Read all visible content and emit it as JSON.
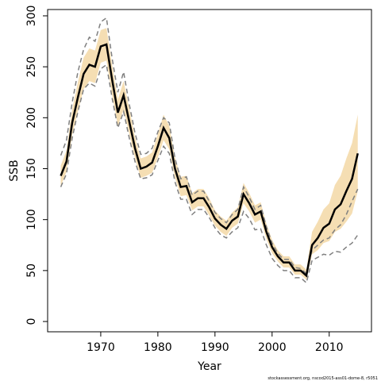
{
  "chart_data": {
    "type": "line",
    "x_label": "Year",
    "y_label": "SSB",
    "footnote": "stockassessment.org, nscod2015-ass01-dome-8, r5051",
    "x": [
      1963,
      1964,
      1965,
      1966,
      1967,
      1968,
      1969,
      1970,
      1971,
      1972,
      1973,
      1974,
      1975,
      1976,
      1977,
      1978,
      1979,
      1980,
      1981,
      1982,
      1983,
      1984,
      1985,
      1986,
      1987,
      1988,
      1989,
      1990,
      1991,
      1992,
      1993,
      1994,
      1995,
      1996,
      1997,
      1998,
      1999,
      2000,
      2001,
      2002,
      2003,
      2004,
      2005,
      2006,
      2007,
      2008,
      2009,
      2010,
      2011,
      2012,
      2013,
      2014,
      2015
    ],
    "values": [
      143,
      157,
      195,
      220,
      243,
      252,
      250,
      270,
      272,
      237,
      205,
      222,
      196,
      170,
      150,
      152,
      156,
      172,
      190,
      180,
      150,
      132,
      133,
      117,
      121,
      121,
      112,
      101,
      95,
      91,
      99,
      103,
      125,
      116,
      105,
      108,
      88,
      73,
      64,
      58,
      58,
      50,
      50,
      45,
      75,
      82,
      92,
      96,
      110,
      115,
      128,
      140,
      165
    ],
    "color": "#000000",
    "band": {
      "color": "#f5deb3",
      "lower": [
        133,
        147,
        183,
        206,
        228,
        236,
        234,
        254,
        256,
        222,
        192,
        208,
        184,
        160,
        141,
        143,
        146,
        161,
        178,
        169,
        141,
        123,
        124,
        109,
        113,
        113,
        104,
        94,
        88,
        84,
        92,
        96,
        116,
        108,
        97,
        100,
        81,
        67,
        59,
        53,
        53,
        46,
        46,
        41,
        66,
        70,
        77,
        79,
        88,
        91,
        98,
        106,
        128
      ],
      "upper": [
        153,
        168,
        208,
        235,
        259,
        268,
        266,
        286,
        288,
        252,
        218,
        236,
        209,
        181,
        160,
        162,
        166,
        184,
        203,
        192,
        161,
        142,
        143,
        126,
        130,
        130,
        121,
        109,
        103,
        99,
        107,
        112,
        136,
        126,
        114,
        117,
        96,
        80,
        70,
        64,
        64,
        56,
        56,
        51,
        88,
        98,
        110,
        116,
        134,
        143,
        160,
        175,
        203
      ]
    },
    "series": [
      {
        "color": "#808080",
        "values": [
          163,
          178,
          215,
          245,
          267,
          279,
          275,
          294,
          298,
          258,
          225,
          245,
          213,
          185,
          164,
          165,
          170,
          186,
          200,
          195,
          160,
          140,
          142,
          124,
          128,
          128,
          118,
          107,
          101,
          97,
          105,
          110,
          132,
          122,
          110,
          114,
          93,
          77,
          67,
          61,
          61,
          53,
          52,
          47,
          70,
          75,
          80,
          82,
          90,
          95,
          105,
          118,
          130
        ]
      },
      {
        "color": "#808080",
        "values": [
          132,
          145,
          180,
          206,
          228,
          234,
          231,
          248,
          252,
          219,
          190,
          206,
          180,
          157,
          140,
          141,
          144,
          158,
          172,
          165,
          137,
          120,
          120,
          105,
          110,
          110,
          102,
          92,
          85,
          82,
          88,
          92,
          108,
          101,
          90,
          91,
          75,
          62,
          55,
          50,
          50,
          43,
          43,
          38,
          60,
          63,
          66,
          65,
          69,
          68,
          73,
          77,
          85
        ]
      }
    ],
    "xlim": [
      1960.7,
      2017.4
    ],
    "xticks": [
      1970,
      1980,
      1990,
      2000,
      2010
    ],
    "ylim": [
      -10.1,
      306.2
    ],
    "yticks": [
      0,
      50,
      100,
      150,
      200,
      250,
      300
    ]
  }
}
